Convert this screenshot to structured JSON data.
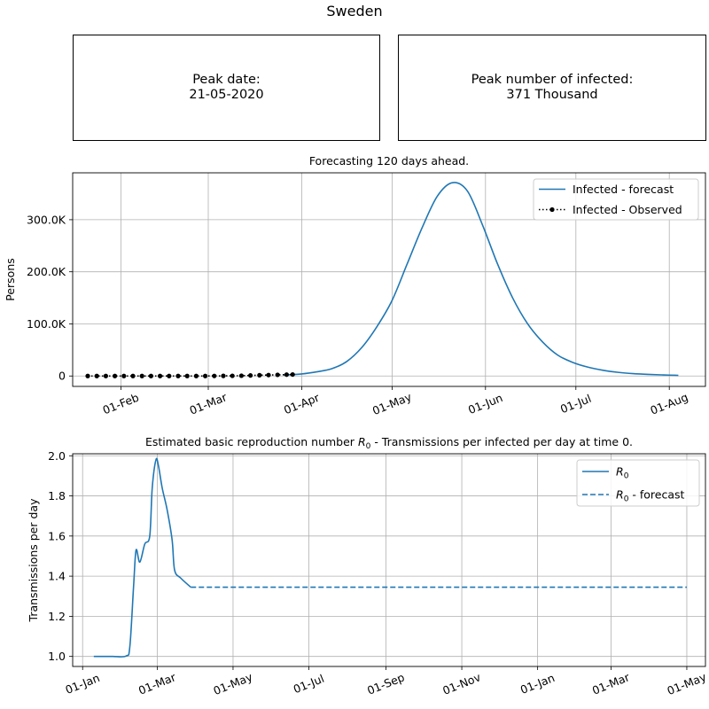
{
  "suptitle": "Sweden",
  "peak_date": {
    "label": "Peak date:",
    "value": "21-05-2020"
  },
  "peak_infected": {
    "label": "Peak number of infected:",
    "value": "371 Thousand"
  },
  "chart_data": [
    {
      "type": "line",
      "title": "Forecasting 120 days ahead.",
      "ylabel": "Persons",
      "xlabel": "",
      "xlim": [
        "2020-01-16",
        "2020-08-13"
      ],
      "ylim": [
        -20000,
        390000
      ],
      "x_ticks": [
        "2020-02-01",
        "2020-03-01",
        "2020-04-01",
        "2020-05-01",
        "2020-06-01",
        "2020-07-01",
        "2020-08-01"
      ],
      "x_tick_labels": [
        "01-Feb",
        "01-Mar",
        "01-Apr",
        "01-May",
        "01-Jun",
        "01-Jul",
        "01-Aug"
      ],
      "y_ticks": [
        0,
        100000,
        200000,
        300000
      ],
      "y_tick_labels": [
        "0",
        "100.0K",
        "200.0K",
        "300.0K"
      ],
      "grid": true,
      "legend": "top-right",
      "series": [
        {
          "name": "Infected - forecast",
          "color": "#1f77b4",
          "style": "solid",
          "points": [
            [
              "2020-03-26",
              2000
            ],
            [
              "2020-04-01",
              4000
            ],
            [
              "2020-04-06",
              8000
            ],
            [
              "2020-04-11",
              14000
            ],
            [
              "2020-04-16",
              28000
            ],
            [
              "2020-04-21",
              55000
            ],
            [
              "2020-04-26",
              95000
            ],
            [
              "2020-05-01",
              145000
            ],
            [
              "2020-05-06",
              215000
            ],
            [
              "2020-05-11",
              285000
            ],
            [
              "2020-05-16",
              345000
            ],
            [
              "2020-05-21",
              371000
            ],
            [
              "2020-05-26",
              355000
            ],
            [
              "2020-05-31",
              290000
            ],
            [
              "2020-06-05",
              215000
            ],
            [
              "2020-06-10",
              150000
            ],
            [
              "2020-06-15",
              100000
            ],
            [
              "2020-06-20",
              65000
            ],
            [
              "2020-06-25",
              40000
            ],
            [
              "2020-06-30",
              26000
            ],
            [
              "2020-07-05",
              17000
            ],
            [
              "2020-07-10",
              11000
            ],
            [
              "2020-07-15",
              7000
            ],
            [
              "2020-07-20",
              4500
            ],
            [
              "2020-07-25",
              3000
            ],
            [
              "2020-07-30",
              2000
            ],
            [
              "2020-08-04",
              1200
            ]
          ]
        },
        {
          "name": "Infected - Observed",
          "color": "#000000",
          "style": "dotted-markers",
          "points": [
            [
              "2020-01-21",
              0
            ],
            [
              "2020-01-24",
              0
            ],
            [
              "2020-01-27",
              0
            ],
            [
              "2020-01-30",
              0
            ],
            [
              "2020-02-02",
              0
            ],
            [
              "2020-02-05",
              0
            ],
            [
              "2020-02-08",
              0
            ],
            [
              "2020-02-11",
              0
            ],
            [
              "2020-02-14",
              0
            ],
            [
              "2020-02-17",
              0
            ],
            [
              "2020-02-20",
              0
            ],
            [
              "2020-02-23",
              0
            ],
            [
              "2020-02-26",
              0
            ],
            [
              "2020-02-29",
              0
            ],
            [
              "2020-03-03",
              100
            ],
            [
              "2020-03-06",
              200
            ],
            [
              "2020-03-09",
              300
            ],
            [
              "2020-03-12",
              500
            ],
            [
              "2020-03-15",
              1000
            ],
            [
              "2020-03-18",
              1500
            ],
            [
              "2020-03-21",
              1800
            ],
            [
              "2020-03-24",
              2200
            ],
            [
              "2020-03-27",
              2600
            ],
            [
              "2020-03-29",
              2800
            ]
          ]
        }
      ]
    },
    {
      "type": "line",
      "title": "Estimated basic reproduction number R0 - Transmissions per infected per day at time 0.",
      "ylabel": "Transmissions per day",
      "xlabel": "",
      "xlim": [
        "2019-12-24",
        "2021-05-16"
      ],
      "ylim": [
        0.95,
        2.01
      ],
      "x_ticks": [
        "2020-01-01",
        "2020-03-01",
        "2020-05-01",
        "2020-07-01",
        "2020-09-01",
        "2020-11-01",
        "2021-01-01",
        "2021-03-01",
        "2021-05-01"
      ],
      "x_tick_labels": [
        "01-Jan",
        "01-Mar",
        "01-May",
        "01-Jul",
        "01-Sep",
        "01-Nov",
        "01-Jan",
        "01-Mar",
        "01-May"
      ],
      "y_ticks": [
        1.0,
        1.2,
        1.4,
        1.6,
        1.8,
        2.0
      ],
      "y_tick_labels": [
        "1.0",
        "1.2",
        "1.4",
        "1.6",
        "1.8",
        "2.0"
      ],
      "grid": true,
      "legend": "top-right",
      "series": [
        {
          "name": "R0",
          "color": "#1f77b4",
          "style": "solid",
          "points": [
            [
              "2020-01-10",
              1.0
            ],
            [
              "2020-01-25",
              1.0
            ],
            [
              "2020-02-05",
              1.002
            ],
            [
              "2020-02-08",
              1.05
            ],
            [
              "2020-02-11",
              1.35
            ],
            [
              "2020-02-13",
              1.53
            ],
            [
              "2020-02-16",
              1.47
            ],
            [
              "2020-02-20",
              1.56
            ],
            [
              "2020-02-24",
              1.6
            ],
            [
              "2020-02-26",
              1.84
            ],
            [
              "2020-02-29",
              1.98
            ],
            [
              "2020-03-02",
              1.95
            ],
            [
              "2020-03-05",
              1.84
            ],
            [
              "2020-03-09",
              1.73
            ],
            [
              "2020-03-13",
              1.58
            ],
            [
              "2020-03-15",
              1.43
            ],
            [
              "2020-03-20",
              1.39
            ],
            [
              "2020-03-28",
              1.345
            ]
          ]
        },
        {
          "name": "R0 - forecast",
          "color": "#1f77b4",
          "style": "dashed",
          "points": [
            [
              "2020-03-28",
              1.345
            ],
            [
              "2021-05-01",
              1.345
            ]
          ]
        }
      ]
    }
  ]
}
